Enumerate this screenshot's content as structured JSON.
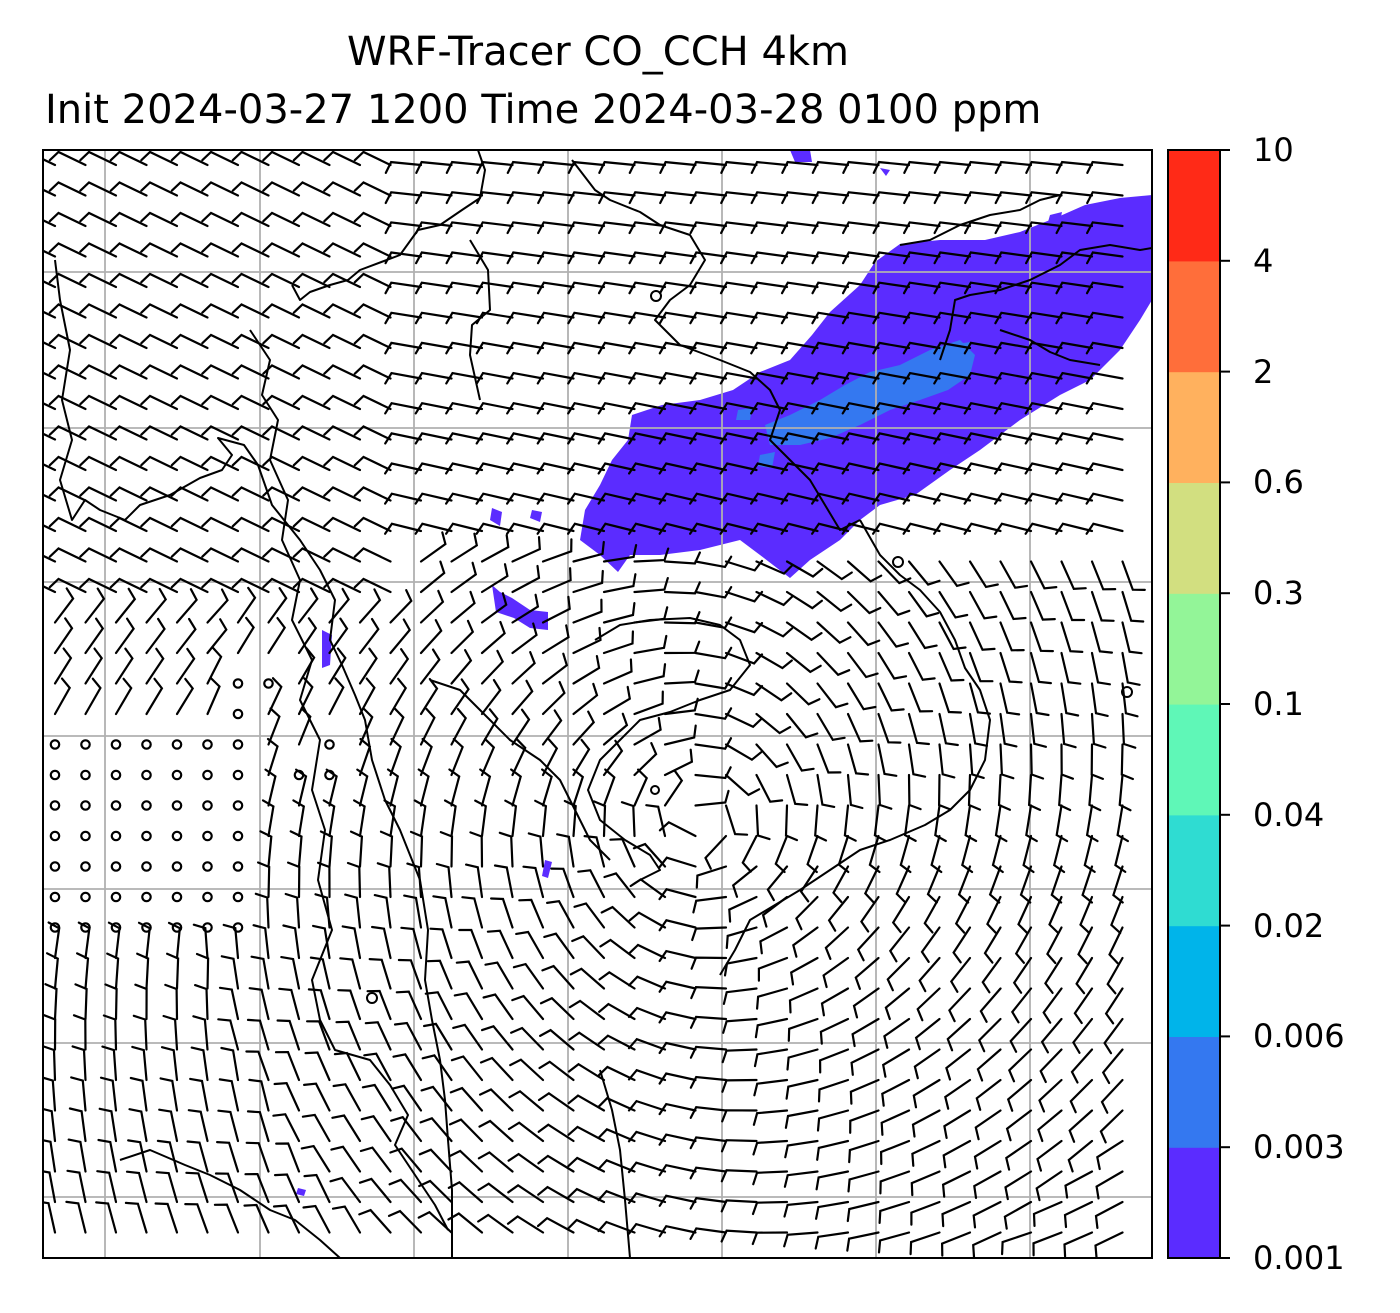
{
  "title": {
    "line1": "WRF-Tracer CO_CCH 4km",
    "line2": "Init 2024-03-27 1200 Time 2024-03-28 0100 ppm"
  },
  "colorbar": {
    "levels": [
      {
        "label": "0.001",
        "color": "#5b2cff"
      },
      {
        "label": "0.003",
        "color": "#3478f0"
      },
      {
        "label": "0.006",
        "color": "#00b4ea"
      },
      {
        "label": "0.02",
        "color": "#2fdcd2"
      },
      {
        "label": "0.04",
        "color": "#5ff7b7"
      },
      {
        "label": "0.1",
        "color": "#93f598"
      },
      {
        "label": "0.3",
        "color": "#d2df80"
      },
      {
        "label": "0.6",
        "color": "#ffb15e"
      },
      {
        "label": "2",
        "color": "#ff6e3a"
      },
      {
        "label": "4",
        "color": "#ff2a17"
      },
      {
        "label": "10",
        "color": null
      }
    ]
  },
  "map": {
    "plume_colors": {
      "outer": "#5b2cff",
      "inner": "#3478f0"
    },
    "gridline_color": "#b0b0b0",
    "coastline_color": "#000000"
  }
}
